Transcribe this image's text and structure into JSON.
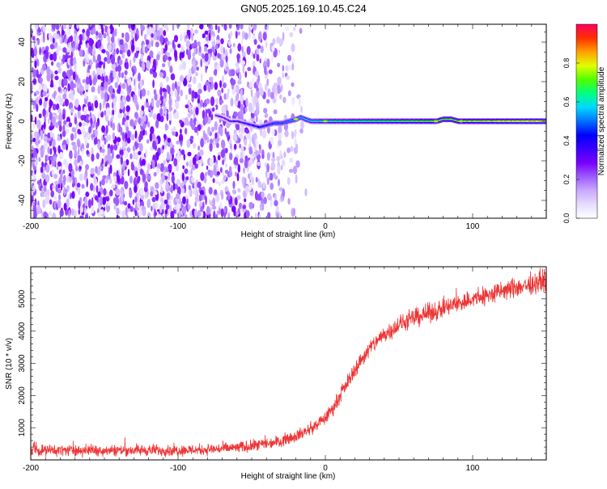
{
  "title": "GN05.2025.169.10.45.C24",
  "chart_data": [
    {
      "type": "heatmap",
      "panel": "spectrogram",
      "xlabel": "Height of straight line (km)",
      "ylabel": "Frequency (Hz)",
      "xlim": [
        -200,
        150
      ],
      "ylim": [
        -49,
        49
      ],
      "xticks": [
        -200,
        -100,
        0,
        100
      ],
      "yticks": [
        -40,
        -20,
        0,
        20,
        40
      ],
      "colorbar": {
        "label": "Normalized spectral amplitude",
        "range": [
          0,
          1
        ],
        "ticks": [
          0.0,
          0.2,
          0.4,
          0.6,
          0.8
        ],
        "tick_labels": [
          "0.0",
          "0.2",
          "0.4",
          "0.6",
          "0.8"
        ],
        "colors": [
          "#ffffff",
          "#e6dcff",
          "#c9a9ff",
          "#9d5bff",
          "#7a00ff",
          "#3a00ff",
          "#0000ff",
          "#0070ff",
          "#00d8ff",
          "#00ff80",
          "#50ff00",
          "#e0ff00",
          "#ffa000",
          "#ff3000",
          "#ff0060"
        ]
      },
      "features": {
        "noise_region_x": [
          -200,
          -40
        ],
        "signal_trace": [
          {
            "x": -75,
            "f": 3
          },
          {
            "x": -70,
            "f": 2
          },
          {
            "x": -65,
            "f": 0
          },
          {
            "x": -60,
            "f": 0
          },
          {
            "x": -55,
            "f": -1
          },
          {
            "x": -50,
            "f": -2
          },
          {
            "x": -45,
            "f": -3
          },
          {
            "x": -40,
            "f": -2
          },
          {
            "x": -35,
            "f": -1
          },
          {
            "x": -30,
            "f": -1
          },
          {
            "x": -25,
            "f": 0
          },
          {
            "x": -20,
            "f": 1
          },
          {
            "x": -17,
            "f": 2
          },
          {
            "x": -14,
            "f": 1
          },
          {
            "x": -10,
            "f": 0
          },
          {
            "x": 0,
            "f": 0
          },
          {
            "x": 50,
            "f": 0
          },
          {
            "x": 75,
            "f": 0
          },
          {
            "x": 80,
            "f": 1
          },
          {
            "x": 85,
            "f": 1
          },
          {
            "x": 90,
            "f": 0
          },
          {
            "x": 150,
            "f": 0
          }
        ],
        "signal_amplitude": [
          {
            "x": -75,
            "a": 0.25
          },
          {
            "x": -60,
            "a": 0.3
          },
          {
            "x": -40,
            "a": 0.45
          },
          {
            "x": -20,
            "a": 0.55
          },
          {
            "x": 0,
            "a": 0.65
          },
          {
            "x": 50,
            "a": 0.72
          },
          {
            "x": 100,
            "a": 0.8
          },
          {
            "x": 150,
            "a": 0.9
          }
        ]
      }
    },
    {
      "type": "line",
      "panel": "snr",
      "xlabel": "Height of straight line (km)",
      "ylabel": "SNR (10 * v/v)",
      "xlim": [
        -200,
        150
      ],
      "ylim": [
        0,
        6000
      ],
      "xticks": [
        -200,
        -100,
        0,
        100
      ],
      "yticks": [
        1000,
        2000,
        3000,
        4000,
        5000
      ],
      "color": "#ee3333",
      "series": [
        {
          "x": [
            -200,
            -180,
            -160,
            -140,
            -120,
            -100,
            -80,
            -60,
            -50,
            -40,
            -30,
            -20,
            -10,
            0,
            5,
            10,
            15,
            20,
            25,
            30,
            35,
            40,
            50,
            60,
            70,
            80,
            90,
            100,
            110,
            120,
            130,
            140,
            150
          ],
          "values": [
            300,
            300,
            300,
            300,
            300,
            300,
            320,
            380,
            430,
            500,
            600,
            750,
            950,
            1300,
            1600,
            2000,
            2400,
            2800,
            3150,
            3450,
            3700,
            3900,
            4200,
            4400,
            4550,
            4700,
            4850,
            5000,
            5100,
            5250,
            5350,
            5450,
            5600
          ]
        }
      ],
      "noise_halfwidth": 250
    }
  ]
}
